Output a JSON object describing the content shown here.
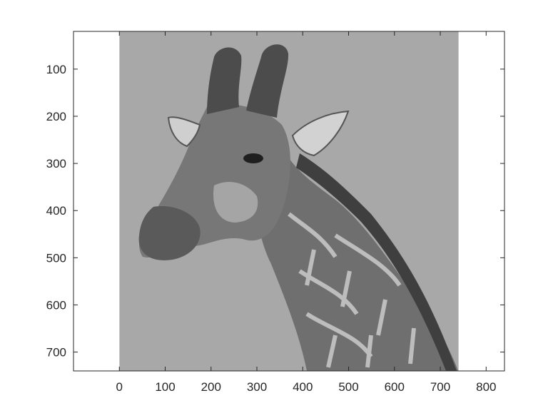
{
  "plot": {
    "type": "image",
    "image_subject": "giraffe-photo",
    "colormap": "grayscale",
    "xlim": [
      -100,
      840
    ],
    "ylim": [
      740,
      20
    ],
    "x_ticks": [
      "0",
      "100",
      "200",
      "300",
      "400",
      "500",
      "600",
      "700",
      "800"
    ],
    "y_ticks": [
      "100",
      "200",
      "300",
      "400",
      "500",
      "600",
      "700"
    ],
    "image_extent": {
      "x": [
        0,
        740
      ],
      "y": [
        20,
        740
      ]
    },
    "colors": {
      "axes_edge": "#262626",
      "sky": "#a8a8a8",
      "giraffe_dark": "#4a4a4a",
      "giraffe_mid": "#6c6c6c",
      "giraffe_light": "#b9b9b9"
    }
  }
}
